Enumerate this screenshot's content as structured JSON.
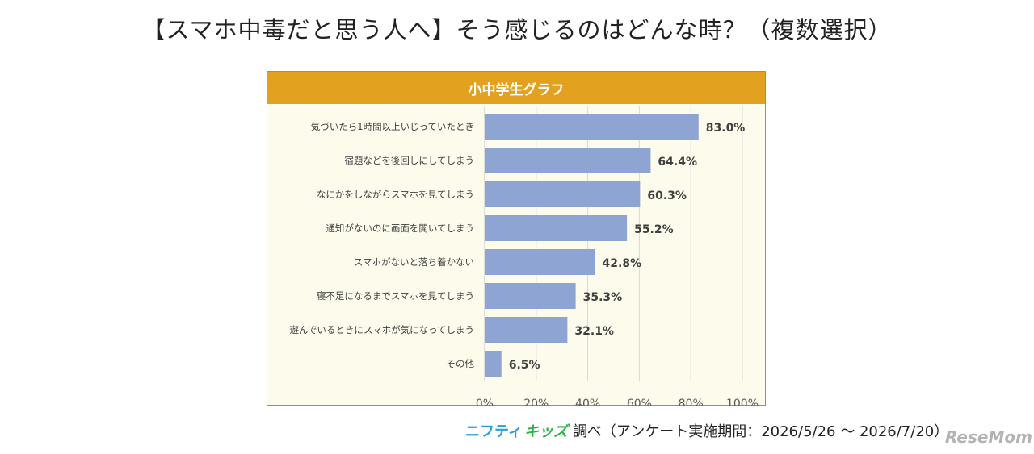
{
  "title": "【スマホ中毒だと思う人へ】そう感じるのはどんな時？（複数選択）",
  "chart_data": {
    "type": "bar",
    "orientation": "horizontal",
    "title": "小中学生グラフ",
    "categories": [
      "気づいたら1時間以上いじっていたとき",
      "宿題などを後回しにしてしまう",
      "なにかをしながらスマホを見てしまう",
      "通知がないのに画面を開いてしまう",
      "スマホがないと落ち着かない",
      "寝不足になるまでスマホを見てしまう",
      "遊んでいるときにスマホが気になってしまう",
      "その他"
    ],
    "values": [
      83.0,
      64.4,
      60.3,
      55.2,
      42.8,
      35.3,
      32.1,
      6.5
    ],
    "value_labels": [
      "83.0%",
      "64.4%",
      "60.3%",
      "55.2%",
      "42.8%",
      "35.3%",
      "32.1%",
      "6.5%"
    ],
    "xlim": [
      0,
      100
    ],
    "x_ticks": [
      "0%",
      "20%",
      "40%",
      "60%",
      "80%",
      "100%"
    ],
    "grid": true,
    "bar_color": "#8ea5d4",
    "header_color": "#e2a21f",
    "background_color": "#fdfbec"
  },
  "footer": {
    "brand_part1": "ニフティ",
    "brand_part2": "キッズ",
    "credit": "調べ（アンケート実施期間：2026/5/26 ～ 2026/7/20）"
  },
  "watermark": "ReseMom"
}
